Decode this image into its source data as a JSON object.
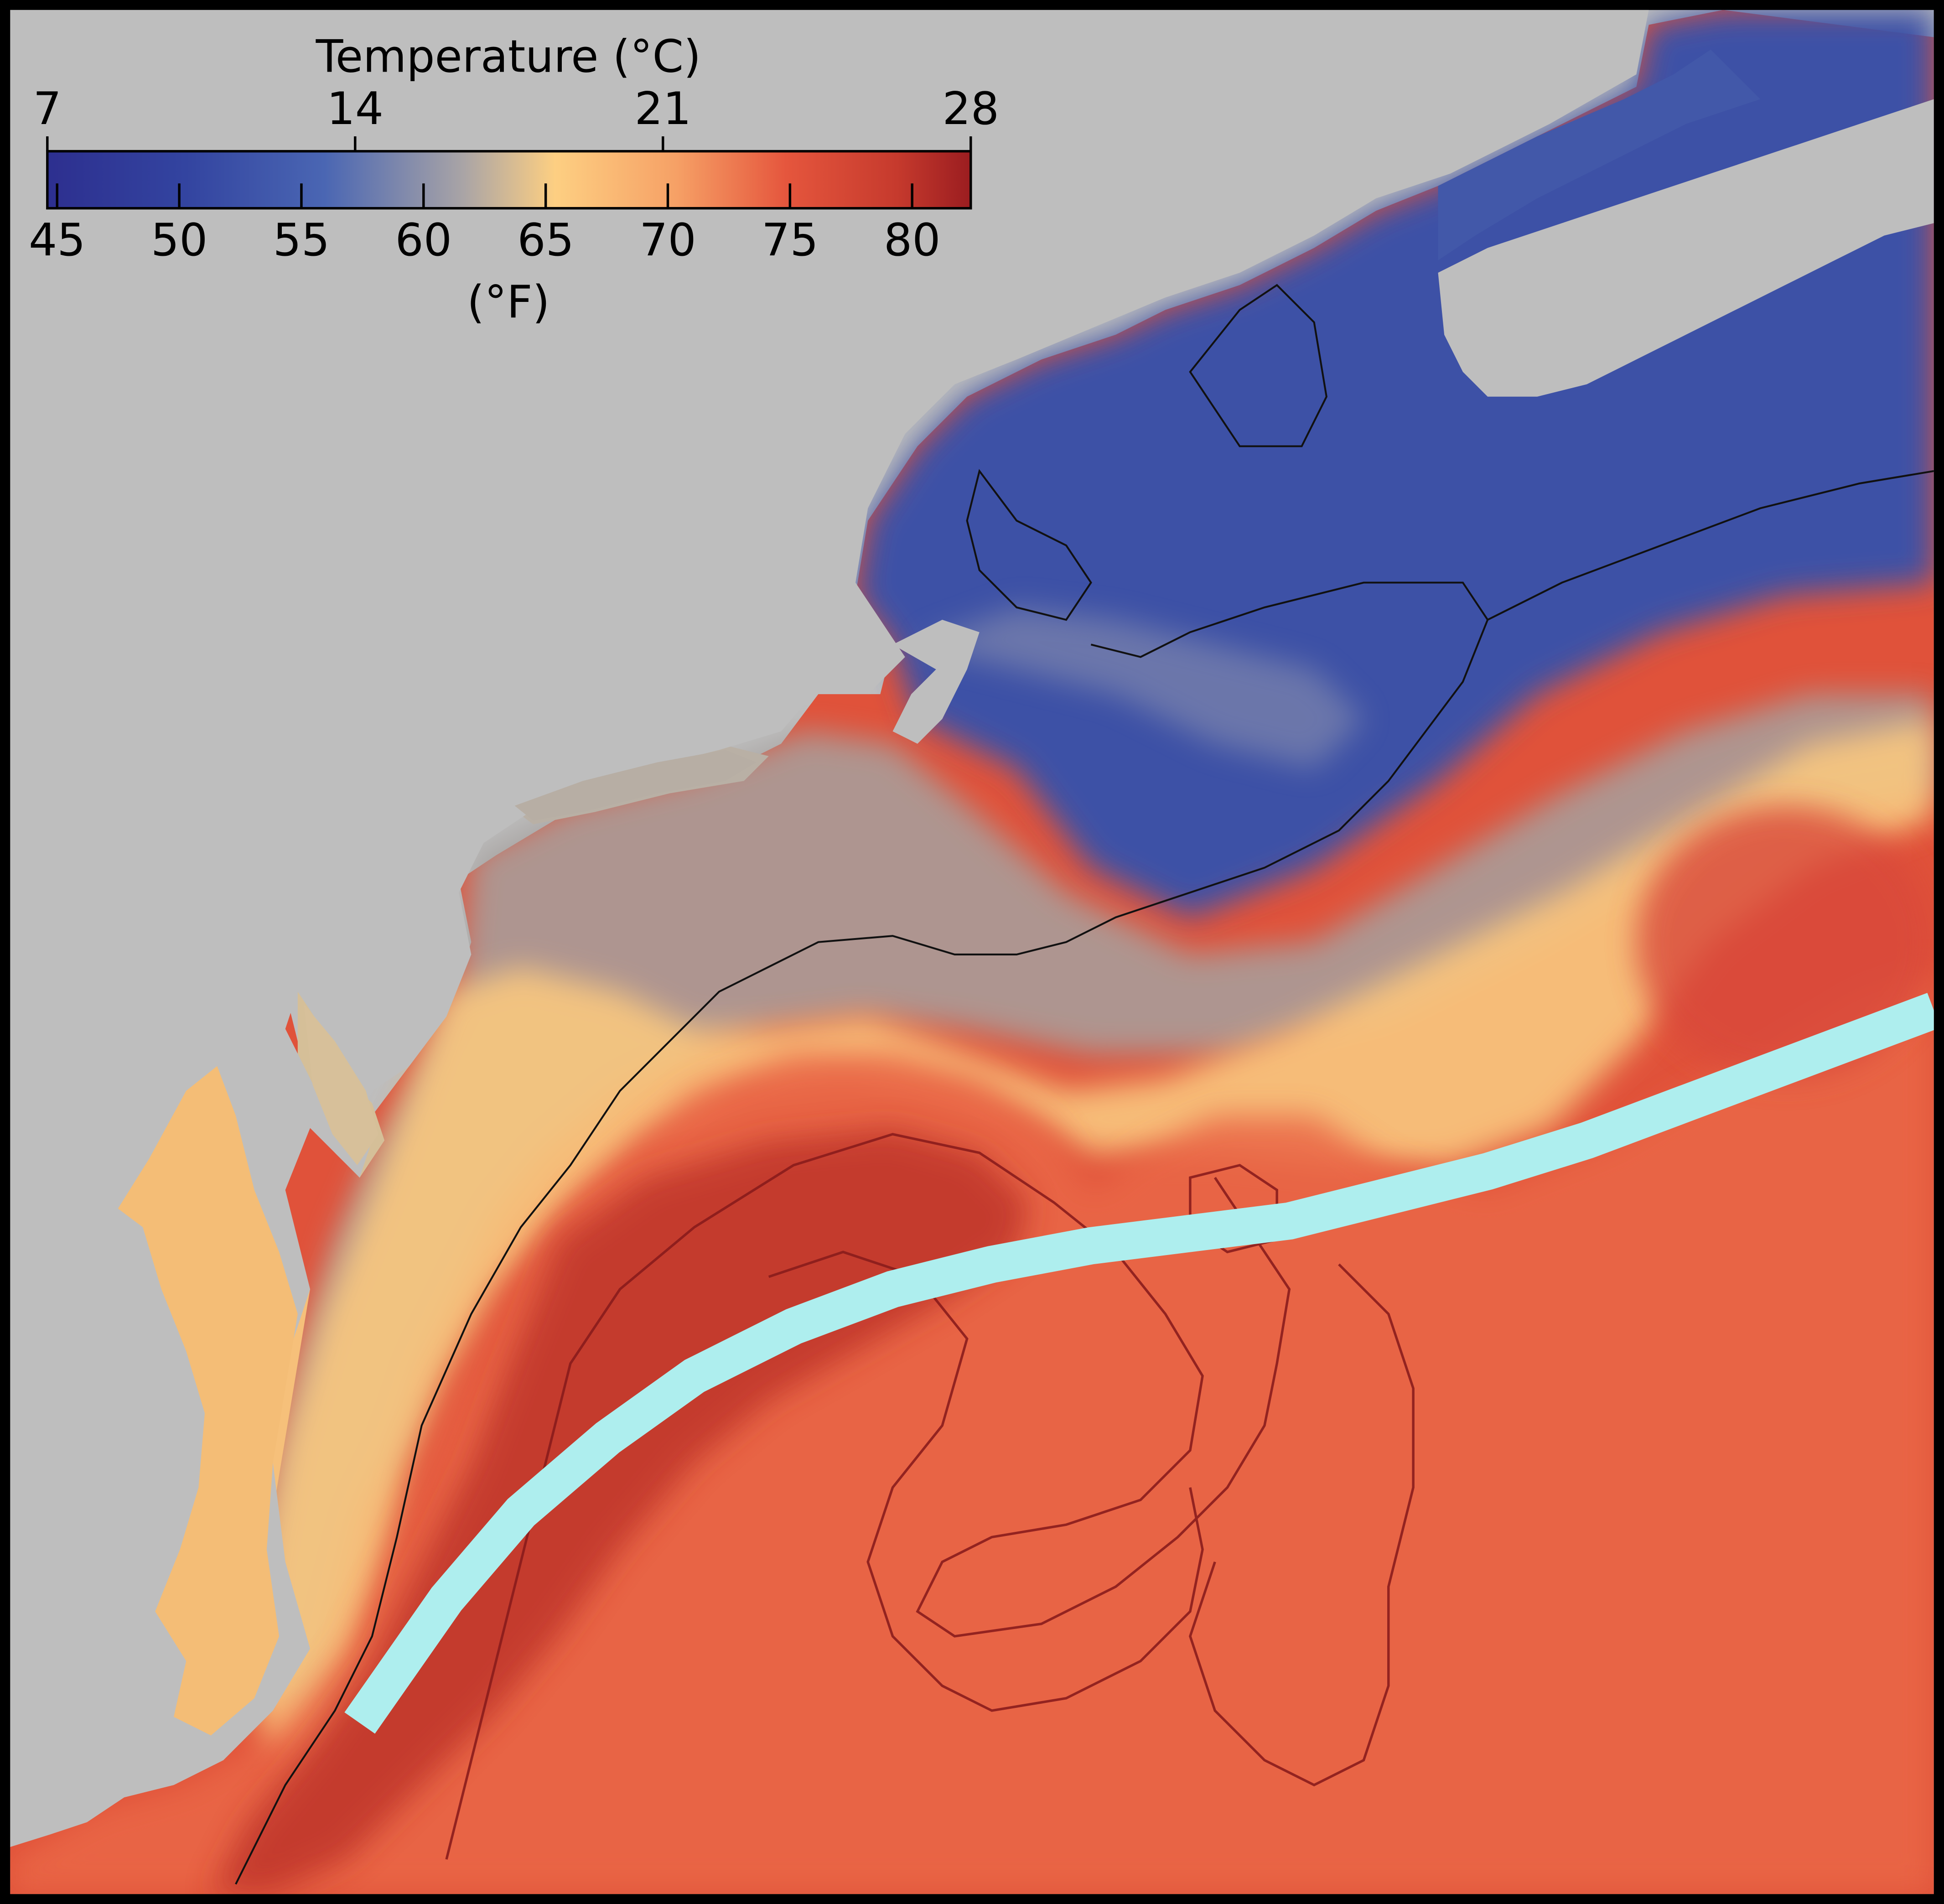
{
  "colorbar": {
    "title": "Temperature (°C)",
    "celsius_ticks": [
      "7",
      "14",
      "21",
      "28"
    ],
    "celsius_values": [
      7,
      14,
      21,
      28
    ],
    "fahrenheit_ticks": [
      "45",
      "50",
      "55",
      "60",
      "65",
      "70",
      "75",
      "80"
    ],
    "fahrenheit_values": [
      45,
      50,
      55,
      60,
      65,
      70,
      75,
      80
    ],
    "fahrenheit_label": "(°F)",
    "range_c": [
      7,
      28
    ],
    "colors": [
      "#2d2f8f",
      "#3a53a4",
      "#5b73b5",
      "#a8a3a0",
      "#fdcd80",
      "#f7a46a",
      "#e6573e",
      "#c9382c",
      "#9b1d20"
    ]
  },
  "map": {
    "land_color": "#bebebe",
    "frame_color": "#000000",
    "track_color": "#aeeeee",
    "warm_water_color": "#e0523a",
    "cold_water_color": "#3c50a5",
    "contour_color": "#111111"
  }
}
